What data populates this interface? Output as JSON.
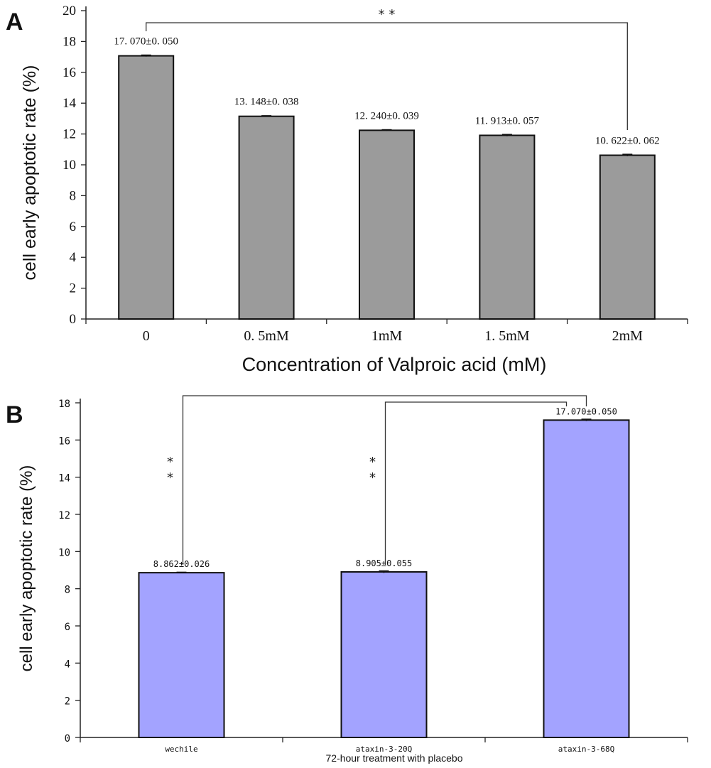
{
  "chart_data": [
    {
      "panel_label": "A",
      "type": "bar",
      "categories": [
        "0",
        "0. 5mM",
        "1mM",
        "1. 5mM",
        "2mM"
      ],
      "values": [
        17.07,
        13.148,
        12.24,
        11.913,
        10.622
      ],
      "errors": [
        0.05,
        0.038,
        0.039,
        0.057,
        0.062
      ],
      "data_labels": [
        "17. 070±0. 050",
        "13. 148±0. 038",
        "12. 240±0. 039",
        "11. 913±0. 057",
        "10. 622±0. 062"
      ],
      "ylabel": "cell early apoptotic rate (%)",
      "xlabel": "Concentration of Valproic acid (mM)",
      "ylim": [
        0,
        20
      ],
      "yticks": [
        0,
        2,
        4,
        6,
        8,
        10,
        12,
        14,
        16,
        18,
        20
      ],
      "bar_color": "#9b9b9b",
      "grid": false,
      "significance": [
        {
          "from": "0",
          "to": "2mM",
          "label": "* *"
        }
      ]
    },
    {
      "panel_label": "B",
      "type": "bar",
      "categories": [
        "wechile",
        "ataxin-3-20Q",
        "ataxin-3-68Q"
      ],
      "values": [
        8.862,
        8.905,
        17.07
      ],
      "errors": [
        0.026,
        0.055,
        0.05
      ],
      "data_labels": [
        "8.862±0.026",
        "8.905±0.055",
        "17.070±0.050"
      ],
      "ylabel": "cell early apoptotic rate (%)",
      "xlabel": "72-hour treatment with placebo",
      "ylim": [
        0,
        18
      ],
      "yticks": [
        0,
        2,
        4,
        6,
        8,
        10,
        12,
        14,
        16,
        18
      ],
      "bar_color": "#a3a3ff",
      "grid": false,
      "significance": [
        {
          "from": "wechile",
          "to": "ataxin-3-68Q",
          "label": "*\n*"
        },
        {
          "from": "ataxin-3-20Q",
          "to": "ataxin-3-68Q",
          "label": "*\n*"
        }
      ]
    }
  ]
}
